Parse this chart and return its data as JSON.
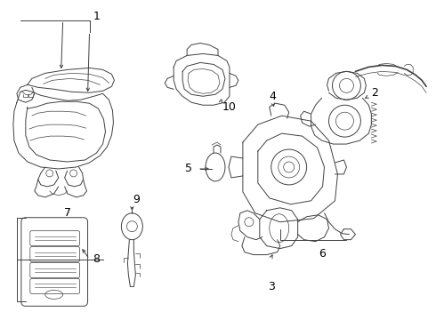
{
  "bg_color": "#ffffff",
  "line_color": "#404040",
  "label_color": "#000000",
  "fig_width": 4.9,
  "fig_height": 3.6,
  "dpi": 100
}
